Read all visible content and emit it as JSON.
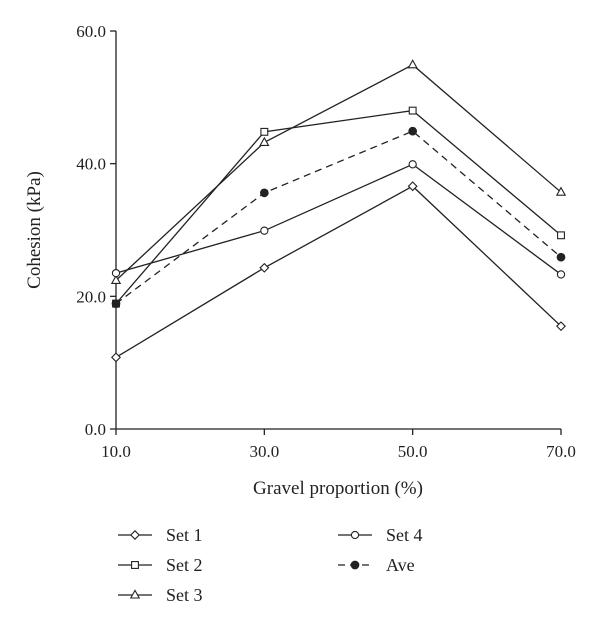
{
  "chart_data": {
    "type": "line",
    "title": "",
    "xlabel": "Gravel proportion (%)",
    "ylabel": "Cohesion (kPa)",
    "x": [
      10,
      30,
      50,
      70
    ],
    "xlim": [
      10,
      70
    ],
    "ylim": [
      0,
      60
    ],
    "xticks": [
      "10.0",
      "30.0",
      "50.0",
      "70.0"
    ],
    "yticks": [
      "0.0",
      "20.0",
      "40.0",
      "60.0"
    ],
    "grid": false,
    "legend_position": "bottom",
    "series": [
      {
        "name": "Set 1",
        "values": [
          10.8,
          24.3,
          36.6,
          15.5
        ],
        "marker": "diamond-open",
        "line": "solid"
      },
      {
        "name": "Set 2",
        "values": [
          18.9,
          44.8,
          48.0,
          29.2
        ],
        "marker": "square-open",
        "line": "solid"
      },
      {
        "name": "Set 3",
        "values": [
          22.4,
          43.2,
          54.9,
          35.7
        ],
        "marker": "triangle-open",
        "line": "solid"
      },
      {
        "name": "Set 4",
        "values": [
          23.5,
          29.9,
          39.9,
          23.3
        ],
        "marker": "circle-open",
        "line": "solid"
      },
      {
        "name": "Ave",
        "values": [
          18.9,
          35.6,
          44.9,
          25.9
        ],
        "marker": "circle-filled",
        "line": "dashed"
      }
    ]
  }
}
